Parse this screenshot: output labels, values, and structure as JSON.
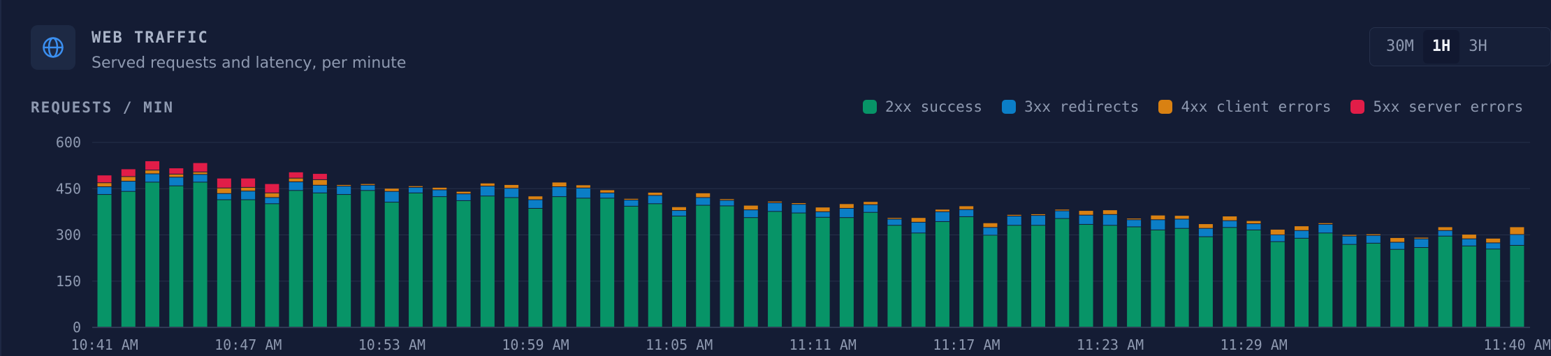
{
  "header": {
    "icon": "globe-icon",
    "title": "WEB TRAFFIC",
    "subtitle": "Served requests and latency, per minute"
  },
  "time_range": {
    "options": [
      "30M",
      "1H",
      "3H"
    ],
    "selected": "1H"
  },
  "chart_label": "REQUESTS / MIN",
  "colors": {
    "background": "#141c34",
    "2xx": "#079467",
    "3xx": "#0b7ec7",
    "4xx": "#d98112",
    "5xx": "#e11d48"
  },
  "legend": [
    {
      "key": "2xx",
      "label": "2xx success"
    },
    {
      "key": "3xx",
      "label": "3xx redirects"
    },
    {
      "key": "4xx",
      "label": "4xx client errors"
    },
    {
      "key": "5xx",
      "label": "5xx server errors"
    }
  ],
  "chart_data": {
    "type": "bar",
    "stacked": true,
    "ylim": [
      0,
      600
    ],
    "yticks": [
      0,
      150,
      300,
      450,
      600
    ],
    "grid": true,
    "legend_position": "top-right",
    "xtick_labels": [
      {
        "index": 0,
        "label": "10:41 AM"
      },
      {
        "index": 6,
        "label": "10:47 AM"
      },
      {
        "index": 12,
        "label": "10:53 AM"
      },
      {
        "index": 18,
        "label": "10:59 AM"
      },
      {
        "index": 24,
        "label": "11:05 AM"
      },
      {
        "index": 30,
        "label": "11:11 AM"
      },
      {
        "index": 36,
        "label": "11:17 AM"
      },
      {
        "index": 42,
        "label": "11:23 AM"
      },
      {
        "index": 48,
        "label": "11:29 AM"
      },
      {
        "index": 59,
        "label": "11:40 AM"
      }
    ],
    "series": [
      {
        "name": "2xx success",
        "key": "2xx",
        "values": [
          430,
          440,
          470,
          458,
          470,
          413,
          413,
          400,
          443,
          435,
          430,
          443,
          405,
          435,
          423,
          410,
          425,
          420,
          385,
          423,
          418,
          418,
          392,
          400,
          360,
          395,
          393,
          355,
          375,
          370,
          356,
          355,
          372,
          330,
          305,
          342,
          358,
          298,
          330,
          330,
          352,
          333,
          330,
          325,
          315,
          320,
          293,
          323,
          315,
          277,
          288,
          305,
          268,
          272,
          252,
          258,
          295,
          263,
          253,
          265
        ]
      },
      {
        "name": "3xx redirects",
        "key": "3xx",
        "values": [
          25,
          33,
          27,
          28,
          25,
          20,
          28,
          20,
          28,
          25,
          27,
          17,
          35,
          18,
          22,
          22,
          32,
          30,
          28,
          32,
          33,
          17,
          20,
          27,
          18,
          25,
          18,
          25,
          28,
          28,
          18,
          30,
          25,
          20,
          35,
          32,
          23,
          25,
          30,
          32,
          25,
          30,
          35,
          23,
          33,
          30,
          27,
          22,
          20,
          22,
          25,
          28,
          27,
          25,
          23,
          28,
          18,
          23,
          20,
          35
        ]
      },
      {
        "name": "4xx client errors",
        "key": "4xx",
        "values": [
          13,
          15,
          12,
          10,
          8,
          18,
          12,
          15,
          12,
          18,
          5,
          5,
          10,
          5,
          8,
          8,
          10,
          12,
          12,
          15,
          10,
          10,
          5,
          10,
          12,
          15,
          5,
          15,
          5,
          5,
          15,
          15,
          10,
          5,
          15,
          8,
          12,
          15,
          5,
          5,
          5,
          15,
          15,
          5,
          15,
          12,
          15,
          15,
          10,
          18,
          15,
          5,
          5,
          5,
          15,
          5,
          12,
          15,
          15,
          25
        ]
      },
      {
        "name": "5xx server errors",
        "key": "5xx",
        "values": [
          25,
          25,
          30,
          20,
          30,
          32,
          30,
          30,
          20,
          20,
          0,
          0,
          0,
          0,
          0,
          0,
          0,
          0,
          0,
          0,
          0,
          0,
          0,
          0,
          0,
          0,
          0,
          0,
          0,
          0,
          0,
          0,
          0,
          0,
          0,
          0,
          0,
          0,
          0,
          0,
          0,
          0,
          0,
          0,
          0,
          0,
          0,
          0,
          0,
          0,
          0,
          0,
          0,
          0,
          0,
          0,
          0,
          0,
          0,
          0
        ]
      }
    ]
  }
}
